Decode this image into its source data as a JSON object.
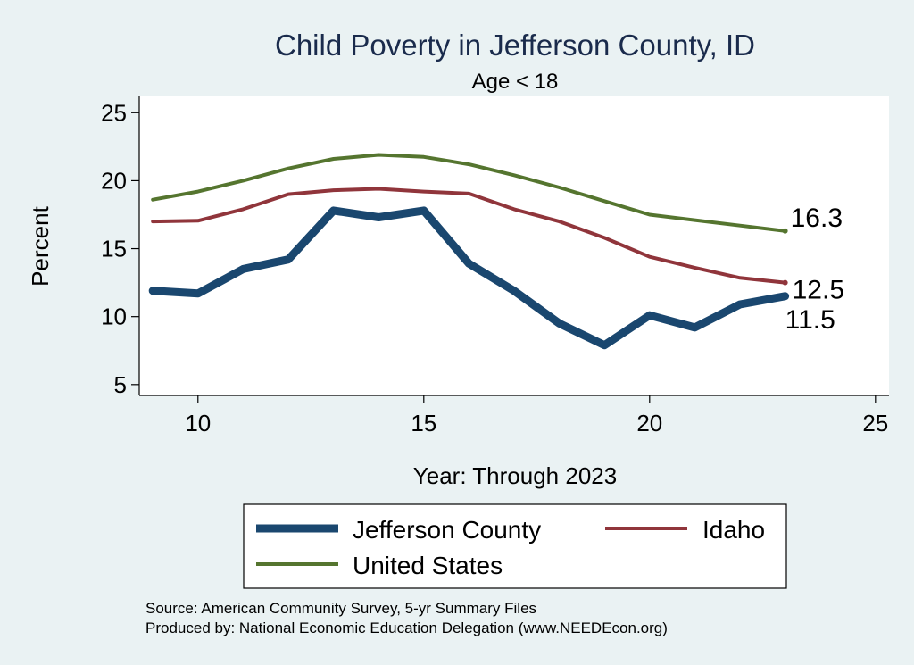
{
  "chart_data": {
    "type": "line",
    "title": "Child Poverty in Jefferson County, ID",
    "subtitle": "Age < 18",
    "xlabel": "Year: Through 2023",
    "ylabel": "Percent",
    "xlim": [
      8.7,
      25.3
    ],
    "ylim": [
      4.2,
      26.2
    ],
    "xticks": [
      10,
      15,
      20,
      25
    ],
    "yticks": [
      5,
      10,
      15,
      20,
      25
    ],
    "grid": false,
    "legend_position": "bottom",
    "x": [
      9,
      10,
      11,
      12,
      13,
      14,
      15,
      16,
      17,
      18,
      19,
      20,
      21,
      22,
      23
    ],
    "series": [
      {
        "name": "Jefferson County",
        "color": "#1a476f",
        "values": [
          11.9,
          11.7,
          13.5,
          14.2,
          17.8,
          17.3,
          17.8,
          13.9,
          11.9,
          9.5,
          7.9,
          10.1,
          9.2,
          10.9,
          11.5
        ],
        "end_label": "11.5"
      },
      {
        "name": "Idaho",
        "color": "#90353b",
        "values": [
          17.0,
          17.05,
          17.9,
          19.0,
          19.3,
          19.4,
          19.2,
          19.05,
          17.9,
          17.0,
          15.8,
          14.4,
          13.6,
          12.85,
          12.5
        ],
        "end_label": "12.5"
      },
      {
        "name": "United States",
        "color": "#55752f",
        "values": [
          18.6,
          19.2,
          20.0,
          20.9,
          21.6,
          21.9,
          21.75,
          21.2,
          20.4,
          19.5,
          18.5,
          17.5,
          17.1,
          16.7,
          16.3
        ],
        "end_label": "16.3"
      }
    ]
  },
  "notes": {
    "source": "Source: American Community Survey, 5-yr Summary Files",
    "produced": "Produced by: National Economic Education Delegation (www.NEEDEcon.org)"
  }
}
